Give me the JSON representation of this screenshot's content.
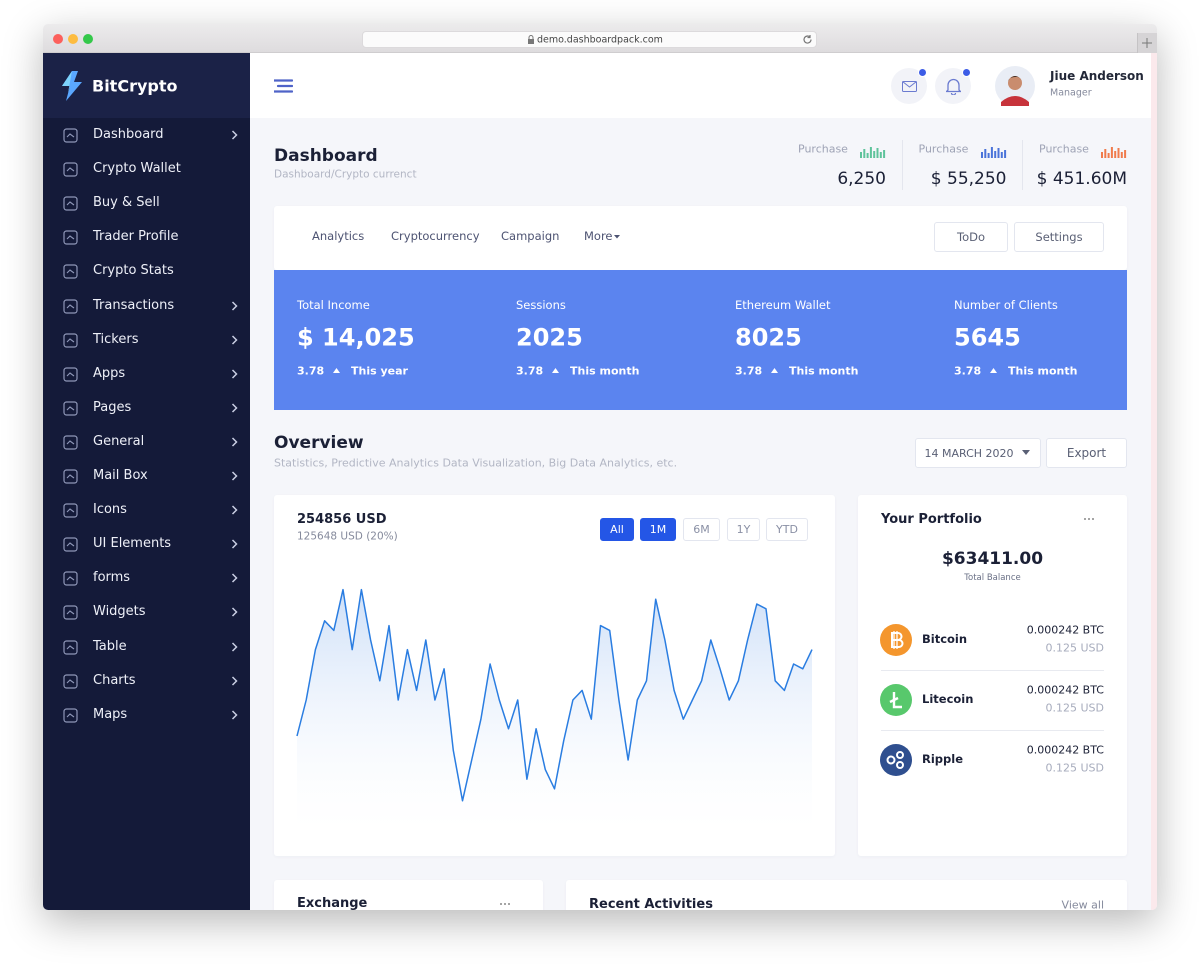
{
  "browser": {
    "url": "demo.dashboardpack.com"
  },
  "sidebar": {
    "brand": "BitCrypto",
    "menu": [
      {
        "label": "Dashboard",
        "has_submenu": true
      },
      {
        "label": "Crypto Wallet",
        "has_submenu": false
      },
      {
        "label": "Buy & Sell",
        "has_submenu": false
      },
      {
        "label": "Trader Profile",
        "has_submenu": false
      },
      {
        "label": "Crypto Stats",
        "has_submenu": false
      },
      {
        "label": "Transactions",
        "has_submenu": true
      },
      {
        "label": "Tickers",
        "has_submenu": true
      },
      {
        "label": "Apps",
        "has_submenu": true
      },
      {
        "label": "Pages",
        "has_submenu": true
      },
      {
        "label": "General",
        "has_submenu": true
      },
      {
        "label": "Mail Box",
        "has_submenu": true
      },
      {
        "label": "Icons",
        "has_submenu": true
      },
      {
        "label": "UI Elements",
        "has_submenu": true
      },
      {
        "label": "forms",
        "has_submenu": true
      },
      {
        "label": "Widgets",
        "has_submenu": true
      },
      {
        "label": "Table",
        "has_submenu": true
      },
      {
        "label": "Charts",
        "has_submenu": true
      },
      {
        "label": "Maps",
        "has_submenu": true
      }
    ]
  },
  "header": {
    "user_name": "Jiue Anderson",
    "user_role": "Manager"
  },
  "page_header": {
    "title": "Dashboard",
    "breadcrumb": "Dashboard/Crypto currenct",
    "purchases": [
      {
        "label": "Purchase",
        "value": "6,250"
      },
      {
        "label": "Purchase",
        "value": "$ 55,250"
      },
      {
        "label": "Purchase",
        "value": "$ 451.60M"
      }
    ]
  },
  "tabs": [
    "Analytics",
    "Cryptocurrency",
    "Campaign",
    "More"
  ],
  "tab_buttons": [
    "ToDo",
    "Settings"
  ],
  "stats": [
    {
      "label": "Total Income",
      "value": "$ 14,025",
      "change": "3.78",
      "period": "This year"
    },
    {
      "label": "Sessions",
      "value": "2025",
      "change": "3.78",
      "period": "This month"
    },
    {
      "label": "Ethereum Wallet",
      "value": "8025",
      "change": "3.78",
      "period": "This month"
    },
    {
      "label": "Number of Clients",
      "value": "5645",
      "change": "3.78",
      "period": "This month"
    }
  ],
  "overview": {
    "title": "Overview",
    "subtitle": "Statistics, Predictive Analytics Data Visualization, Big Data Analytics, etc.",
    "date": "14 MARCH 2020",
    "export": "Export"
  },
  "chart_card": {
    "value": "254856 USD",
    "subvalue": "125648 USD (20%)",
    "ranges": [
      "All",
      "1M",
      "6M",
      "1Y",
      "YTD"
    ]
  },
  "chart_data": {
    "type": "area",
    "color": "#2a7de1",
    "values": [
      35,
      50,
      71,
      83,
      79,
      96,
      71,
      96,
      75,
      58,
      81,
      50,
      71,
      54,
      75,
      50,
      63,
      29,
      8,
      25,
      42,
      65,
      50,
      38,
      50,
      17,
      38,
      21,
      13,
      33,
      50,
      54,
      42,
      81,
      79,
      50,
      25,
      50,
      58,
      92,
      75,
      54,
      42,
      50,
      58,
      75,
      63,
      50,
      58,
      75,
      90,
      88,
      58,
      54,
      65,
      63,
      71
    ]
  },
  "portfolio": {
    "title": "Your Portfolio",
    "balance": "$63411.00",
    "balance_label": "Total Balance",
    "coins": [
      {
        "name": "Bitcoin",
        "amount": "0.000242 BTC",
        "usd": "0.125 USD"
      },
      {
        "name": "Litecoin",
        "amount": "0.000242 BTC",
        "usd": "0.125 USD"
      },
      {
        "name": "Ripple",
        "amount": "0.000242 BTC",
        "usd": "0.125 USD"
      }
    ]
  },
  "exchange": {
    "title": "Exchange"
  },
  "activities": {
    "title": "Recent Activities",
    "view_all": "View all"
  }
}
